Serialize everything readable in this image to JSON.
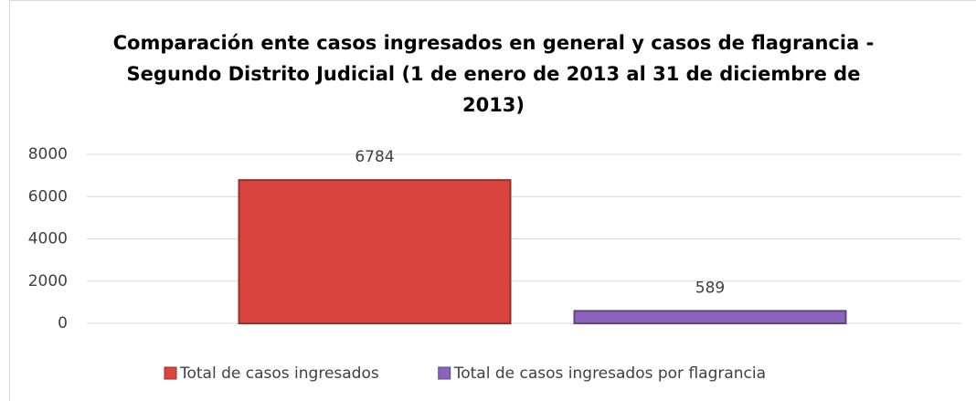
{
  "chart_data": {
    "type": "bar",
    "title": "Comparación ente casos ingresados en general y casos de flagrancia - Segundo Distrito Judicial (1 de enero de 2013 al 31 de diciembre de 2013)",
    "categories": [
      null
    ],
    "series": [
      {
        "name": "Total de casos ingresados",
        "color": "#d9443f",
        "values": [
          6784
        ]
      },
      {
        "name": "Total de casos ingresados por flagrancia",
        "color": "#8b63bb",
        "values": [
          589
        ]
      }
    ],
    "ylim": [
      0,
      8000
    ],
    "yticks": [
      0,
      2000,
      4000,
      6000,
      8000
    ],
    "grid": true,
    "legend": "bottom",
    "data_labels": true
  }
}
